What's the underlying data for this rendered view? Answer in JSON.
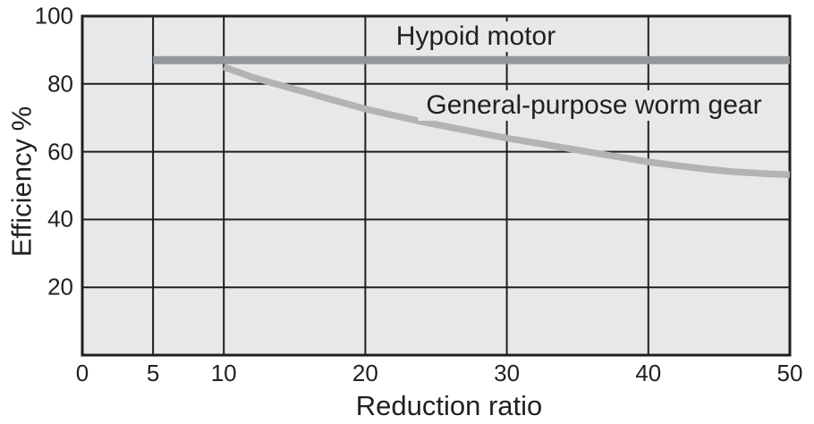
{
  "chart_data": {
    "type": "line",
    "title": "",
    "xlabel": "Reduction ratio",
    "ylabel": "Efficiency %",
    "xlim": [
      0,
      50
    ],
    "ylim": [
      0,
      100
    ],
    "x_ticks": [
      0,
      5,
      10,
      20,
      30,
      40,
      50
    ],
    "y_ticks": [
      20,
      40,
      60,
      80,
      100
    ],
    "grid": true,
    "legend_position": "inline-labels-on-plot",
    "colors": {
      "plot_background": "#e7e8e9",
      "grid": "#1f1f22",
      "text": "#231f20",
      "hypoid_line": "#94989b",
      "worm_line": "#b1b3b5"
    },
    "series": [
      {
        "name": "Hypoid motor",
        "color": "#94989b",
        "points": [
          [
            5,
            87
          ],
          [
            50,
            87
          ]
        ]
      },
      {
        "name": "General-purpose worm gear",
        "color": "#b1b3b5",
        "points": [
          [
            10,
            85
          ],
          [
            12,
            82
          ],
          [
            14,
            79.6
          ],
          [
            16,
            77.3
          ],
          [
            18,
            74.9
          ],
          [
            20,
            72.6
          ],
          [
            22,
            70.7
          ],
          [
            24,
            68.9
          ],
          [
            26,
            67.2
          ],
          [
            28,
            65.6
          ],
          [
            30,
            64
          ],
          [
            32,
            62.6
          ],
          [
            34,
            61.2
          ],
          [
            36,
            59.8
          ],
          [
            38,
            58.4
          ],
          [
            40,
            57
          ],
          [
            42,
            55.9
          ],
          [
            44,
            54.9
          ],
          [
            46,
            54.1
          ],
          [
            48,
            53.6
          ],
          [
            50,
            53.2
          ]
        ]
      }
    ]
  }
}
